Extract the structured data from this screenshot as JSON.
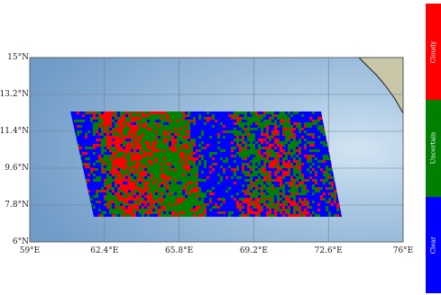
{
  "map": {
    "lat_ticks": [
      {
        "label": "15°N",
        "value": 15
      },
      {
        "label": "13.2°N",
        "value": 13.2
      },
      {
        "label": "11.4°N",
        "value": 11.4
      },
      {
        "label": "9.6°N",
        "value": 9.6
      },
      {
        "label": "7.8°N",
        "value": 7.8
      },
      {
        "label": "6°N",
        "value": 6
      }
    ],
    "lon_ticks": [
      {
        "label": "59°E",
        "value": 59
      },
      {
        "label": "62.4°E",
        "value": 62.4
      },
      {
        "label": "65.8°E",
        "value": 65.8
      },
      {
        "label": "69.2°E",
        "value": 69.2
      },
      {
        "label": "72.6°E",
        "value": 72.6
      },
      {
        "label": "76°E",
        "value": 76
      }
    ],
    "lon_range": [
      59,
      76
    ],
    "lat_range": [
      6,
      15
    ],
    "ocean_color": "#8fb4d6",
    "land_color": "#c9c7a8",
    "gridlines": true
  },
  "legend": {
    "classes": [
      {
        "label": "Cloudy",
        "color": "#ff0000"
      },
      {
        "label": "Uncertain",
        "color": "#008000"
      },
      {
        "label": "Clear",
        "color": "#0000ff"
      }
    ]
  }
}
